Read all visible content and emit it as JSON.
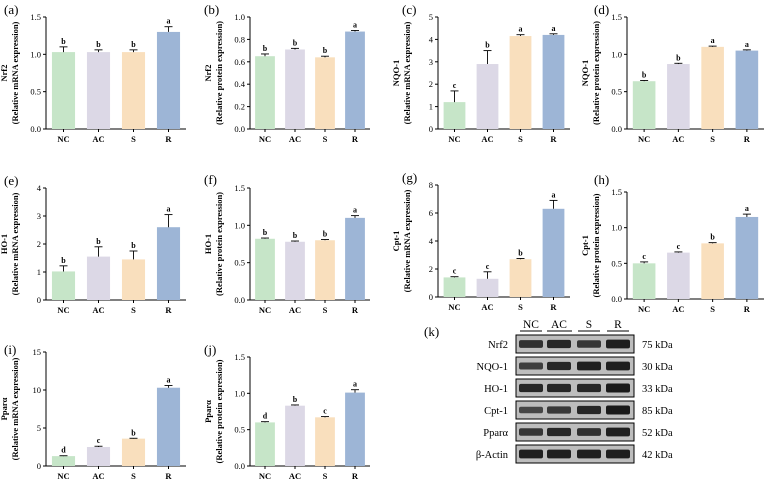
{
  "colors": {
    "NC": "#c6e5c8",
    "AC": "#dcd8e6",
    "S": "#f9dfbd",
    "R": "#9db5d6",
    "axis": "#000000",
    "band": "#1a1a1a",
    "blot_bg": "#bdbdbd"
  },
  "chart_data": [
    {
      "id": "a",
      "letter": "(a)",
      "type": "bar",
      "categories": [
        "NC",
        "AC",
        "S",
        "R"
      ],
      "values": [
        1.03,
        1.03,
        1.03,
        1.3
      ],
      "errors": [
        0.07,
        0.03,
        0.03,
        0.07
      ],
      "significance": [
        "b",
        "b",
        "b",
        "a"
      ],
      "ylabel": [
        "Nrf2",
        "(Relative mRNA expression)"
      ],
      "ylim": [
        0,
        1.5
      ],
      "yticks": [
        0.0,
        0.5,
        1.0,
        1.5
      ]
    },
    {
      "id": "b",
      "letter": "(b)",
      "type": "bar",
      "categories": [
        "NC",
        "AC",
        "S",
        "R"
      ],
      "values": [
        0.65,
        0.71,
        0.64,
        0.87
      ],
      "errors": [
        0.02,
        0.01,
        0.01,
        0.01
      ],
      "significance": [
        "b",
        "b",
        "b",
        "a"
      ],
      "ylabel": [
        "Nrf2",
        "(Relative protein expression)"
      ],
      "ylim": [
        0,
        1.0
      ],
      "yticks": [
        0.0,
        0.2,
        0.4,
        0.6,
        0.8,
        1.0
      ]
    },
    {
      "id": "c",
      "letter": "(c)",
      "type": "bar",
      "categories": [
        "NC",
        "AC",
        "S",
        "R"
      ],
      "values": [
        1.2,
        2.9,
        4.15,
        4.2
      ],
      "errors": [
        0.5,
        0.6,
        0.06,
        0.05
      ],
      "significance": [
        "c",
        "b",
        "a",
        "a"
      ],
      "ylabel": [
        "NQO-1",
        "(Relative mRNA expression)"
      ],
      "ylim": [
        0,
        5
      ],
      "yticks": [
        0,
        1,
        2,
        3,
        4,
        5
      ]
    },
    {
      "id": "d",
      "letter": "(d)",
      "type": "bar",
      "categories": [
        "NC",
        "AC",
        "S",
        "R"
      ],
      "values": [
        0.64,
        0.87,
        1.1,
        1.05
      ],
      "errors": [
        0.01,
        0.01,
        0.01,
        0.01
      ],
      "significance": [
        "b",
        "b",
        "a",
        "a"
      ],
      "ylabel": [
        "NQO-1",
        "(Relative protein expression)"
      ],
      "ylim": [
        0,
        1.5
      ],
      "yticks": [
        0.0,
        0.5,
        1.0,
        1.5
      ]
    },
    {
      "id": "e",
      "letter": "(e)",
      "type": "bar",
      "categories": [
        "NC",
        "AC",
        "S",
        "R"
      ],
      "values": [
        1.02,
        1.55,
        1.45,
        2.6
      ],
      "errors": [
        0.2,
        0.35,
        0.3,
        0.45
      ],
      "significance": [
        "b",
        "b",
        "b",
        "a"
      ],
      "ylabel": [
        "HO-1",
        "(Relative mRNA expression)"
      ],
      "ylim": [
        0,
        4
      ],
      "yticks": [
        0,
        1,
        2,
        3,
        4
      ]
    },
    {
      "id": "f",
      "letter": "(f)",
      "type": "bar",
      "categories": [
        "NC",
        "AC",
        "S",
        "R"
      ],
      "values": [
        0.82,
        0.78,
        0.8,
        1.1
      ],
      "errors": [
        0.01,
        0.01,
        0.01,
        0.03
      ],
      "significance": [
        "b",
        "b",
        "b",
        "a"
      ],
      "ylabel": [
        "HO-1",
        "(Relative protein expression)"
      ],
      "ylim": [
        0,
        1.5
      ],
      "yticks": [
        0.0,
        0.5,
        1.0,
        1.5
      ]
    },
    {
      "id": "g",
      "letter": "(g)",
      "type": "bar",
      "categories": [
        "NC",
        "AC",
        "S",
        "R"
      ],
      "values": [
        1.4,
        1.3,
        2.7,
        6.3
      ],
      "errors": [
        0.05,
        0.5,
        0.05,
        0.6
      ],
      "significance": [
        "c",
        "c",
        "b",
        "a"
      ],
      "ylabel": [
        "Cpt-1",
        "(Relative mRNA expression)"
      ],
      "ylim": [
        0,
        8
      ],
      "yticks": [
        0,
        2,
        4,
        6,
        8
      ]
    },
    {
      "id": "h",
      "letter": "(h)",
      "type": "bar",
      "categories": [
        "NC",
        "AC",
        "S",
        "R"
      ],
      "values": [
        0.5,
        0.65,
        0.78,
        1.15
      ],
      "errors": [
        0.02,
        0.01,
        0.01,
        0.04
      ],
      "significance": [
        "c",
        "c",
        "b",
        "a"
      ],
      "ylabel": [
        "Cpt-1",
        "(Relative protein expression)"
      ],
      "ylim": [
        0,
        1.5
      ],
      "yticks": [
        0.0,
        0.5,
        1.0,
        1.5
      ]
    },
    {
      "id": "i",
      "letter": "(i)",
      "type": "bar",
      "categories": [
        "NC",
        "AC",
        "S",
        "R"
      ],
      "values": [
        1.3,
        2.5,
        3.6,
        10.3
      ],
      "errors": [
        0.05,
        0.1,
        0.05,
        0.3
      ],
      "significance": [
        "d",
        "c",
        "b",
        "a"
      ],
      "ylabel": [
        "Pparα",
        "(Relative mRNA expression)"
      ],
      "ylim": [
        0,
        15
      ],
      "yticks": [
        0,
        5,
        10,
        15
      ]
    },
    {
      "id": "j",
      "letter": "(j)",
      "type": "bar",
      "categories": [
        "NC",
        "AC",
        "S",
        "R"
      ],
      "values": [
        0.6,
        0.83,
        0.67,
        1.01
      ],
      "errors": [
        0.01,
        0.01,
        0.01,
        0.04
      ],
      "significance": [
        "d",
        "b",
        "c",
        "a"
      ],
      "ylabel": [
        "Pparα",
        "(Relative protein expression)"
      ],
      "ylim": [
        0,
        1.5
      ],
      "yticks": [
        0.0,
        0.5,
        1.0,
        1.5
      ]
    }
  ],
  "western_blot": {
    "letter": "(k)",
    "lanes": [
      "NC",
      "AC",
      "S",
      "R"
    ],
    "rows": [
      {
        "protein": "Nrf2",
        "kda": "75 kDa",
        "intensity": [
          0.75,
          0.85,
          0.7,
          0.95
        ]
      },
      {
        "protein": "NQO-1",
        "kda": "30 kDa",
        "intensity": [
          0.6,
          0.85,
          0.95,
          0.95
        ]
      },
      {
        "protein": "HO-1",
        "kda": "33 kDa",
        "intensity": [
          0.85,
          0.85,
          0.85,
          1.0
        ]
      },
      {
        "protein": "Cpt-1",
        "kda": "85 kDa",
        "intensity": [
          0.5,
          0.65,
          0.85,
          1.0
        ]
      },
      {
        "protein": "Pparα",
        "kda": "52 kDa",
        "intensity": [
          0.7,
          0.85,
          0.75,
          0.95
        ]
      },
      {
        "protein": "β-Actin",
        "kda": "42 kDa",
        "intensity": [
          0.95,
          0.95,
          0.95,
          0.95
        ]
      }
    ]
  }
}
